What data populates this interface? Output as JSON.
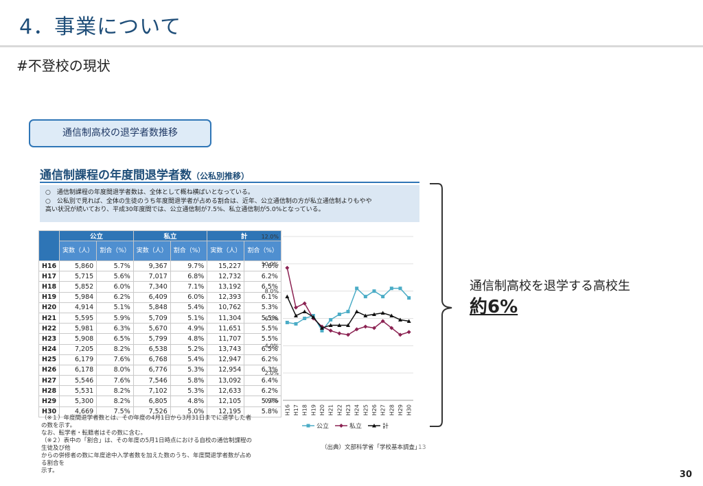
{
  "slide": {
    "title": "4．事業について",
    "subtitle": "#不登校の現状",
    "topic_box": "通信制高校の退学者数推移",
    "callout_text": "通信制高校を退学する高校生",
    "callout_value": "約6%",
    "page_number": "30"
  },
  "document": {
    "title": "通信制課程の年度間退学者数",
    "title_suffix": "（公私別推移）",
    "notes": [
      "○　通信制課程の年度間退学者数は、全体として概ね横ばいとなっている。",
      "○　公私別で見れば、全体の生徒のうち年度間退学者が占める割合は、近年、公立通信制の方が私立通信制よりもやや",
      "高い状況が続いており、平成30年度間では、公立通信制が7.5%、私立通信制が5.0%となっている。"
    ],
    "footnotes": [
      "（※１）年度間退学者数とは、その年度の4月1日から3月31日までに退学した者の数を示す。",
      "なお、転学者・転籍者はその数に含む。",
      "（※２）表中の「割合」は、その年度の5月1日時点における自校の通信制課程の生徒及び他",
      "からの併修者の数に年度途中入学者数を加えた数のうち、年度間退学者数が占める割合を",
      "示す。"
    ],
    "source": "（出典）文部科学省「学校基本調査」",
    "inner_page": "13"
  },
  "table": {
    "groups": [
      "公立",
      "私立",
      "計"
    ],
    "subheaders": [
      "実数（人）",
      "割合（%）",
      "実数（人）",
      "割合（%）",
      "実数（人）",
      "割合（%）"
    ],
    "rows": [
      [
        "H16",
        "5,860",
        "5.7%",
        "9,367",
        "9.7%",
        "15,227",
        "7.6%"
      ],
      [
        "H17",
        "5,715",
        "5.6%",
        "7,017",
        "6.8%",
        "12,732",
        "6.2%"
      ],
      [
        "H18",
        "5,852",
        "6.0%",
        "7,340",
        "7.1%",
        "13,192",
        "6.5%"
      ],
      [
        "H19",
        "5,984",
        "6.2%",
        "6,409",
        "6.0%",
        "12,393",
        "6.1%"
      ],
      [
        "H20",
        "4,914",
        "5.1%",
        "5,848",
        "5.4%",
        "10,762",
        "5.3%"
      ],
      [
        "H21",
        "5,595",
        "5.9%",
        "5,709",
        "5.1%",
        "11,304",
        "5.5%"
      ],
      [
        "H22",
        "5,981",
        "6.3%",
        "5,670",
        "4.9%",
        "11,651",
        "5.5%"
      ],
      [
        "H23",
        "5,908",
        "6.5%",
        "5,799",
        "4.8%",
        "11,707",
        "5.5%"
      ],
      [
        "H24",
        "7,205",
        "8.2%",
        "6,538",
        "5.2%",
        "13,743",
        "6.5%"
      ],
      [
        "H25",
        "6,179",
        "7.6%",
        "6,768",
        "5.4%",
        "12,947",
        "6.2%"
      ],
      [
        "H26",
        "6,178",
        "8.0%",
        "6,776",
        "5.3%",
        "12,954",
        "6.3%"
      ],
      [
        "H27",
        "5,546",
        "7.6%",
        "7,546",
        "5.8%",
        "13,092",
        "6.4%"
      ],
      [
        "H28",
        "5,531",
        "8.2%",
        "7,102",
        "5.3%",
        "12,633",
        "6.2%"
      ],
      [
        "H29",
        "5,300",
        "8.2%",
        "6,805",
        "4.8%",
        "12,105",
        "5.9%"
      ],
      [
        "H30",
        "4,669",
        "7.5%",
        "7,526",
        "5.0%",
        "12,195",
        "5.8%"
      ]
    ]
  },
  "chart_data": {
    "type": "line",
    "title": "",
    "xlabel": "",
    "ylabel": "",
    "categories": [
      "H16",
      "H17",
      "H18",
      "H19",
      "H20",
      "H21",
      "H22",
      "H23",
      "H24",
      "H25",
      "H26",
      "H27",
      "H28",
      "H29",
      "H30"
    ],
    "yticks": [
      "0.0%",
      "2.0%",
      "4.0%",
      "6.0%",
      "8.0%",
      "10.0%",
      "12.0%"
    ],
    "ylim": [
      0,
      12
    ],
    "legend_position": "bottom",
    "series": [
      {
        "name": "公立",
        "marker": "square",
        "color": "#4bacc6",
        "values": [
          5.7,
          5.6,
          6.0,
          6.2,
          5.1,
          5.9,
          6.3,
          6.5,
          8.2,
          7.6,
          8.0,
          7.6,
          8.2,
          8.2,
          7.5
        ]
      },
      {
        "name": "私立",
        "marker": "diamond",
        "color": "#8b2252",
        "values": [
          9.7,
          6.8,
          7.1,
          6.0,
          5.4,
          5.1,
          4.9,
          4.8,
          5.2,
          5.4,
          5.3,
          5.8,
          5.3,
          4.8,
          5.0
        ]
      },
      {
        "name": "計",
        "marker": "triangle",
        "color": "#111111",
        "values": [
          7.6,
          6.2,
          6.5,
          6.1,
          5.3,
          5.5,
          5.5,
          5.5,
          6.5,
          6.2,
          6.3,
          6.4,
          6.2,
          5.9,
          5.8
        ]
      }
    ]
  }
}
